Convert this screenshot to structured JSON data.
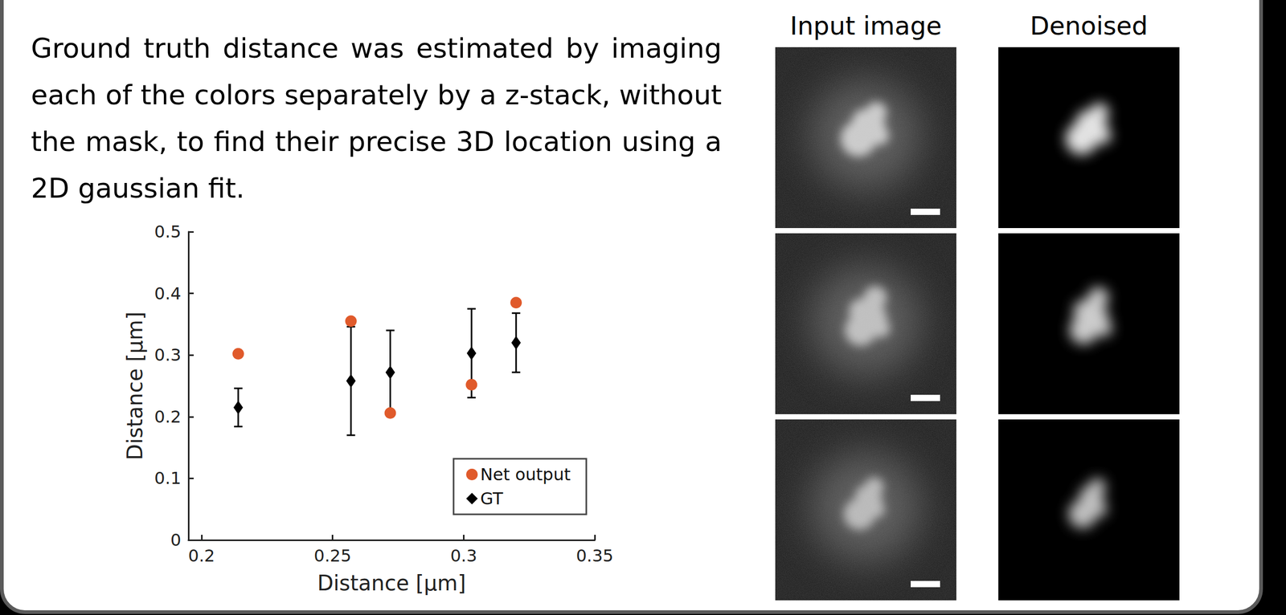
{
  "headings": {
    "columns": [
      "Input image",
      "Denoised"
    ]
  },
  "paragraph": "Ground truth distance was estimated by imaging each of the colors separately by a z-stack, without the mask, to find their precise 3D location using a 2D gaussian fit.",
  "chart_data": {
    "type": "scatter",
    "x_label": "Distance [μm]",
    "y_label": "Distance [μm]",
    "xlim": [
      0.195,
      0.35
    ],
    "xticks": [
      0.2,
      0.25,
      0.3,
      0.35
    ],
    "ylim": [
      0,
      0.5
    ],
    "yticks": [
      0,
      0.1,
      0.2,
      0.3,
      0.4,
      0.5
    ],
    "legend": "lower right",
    "grid": false,
    "series": [
      {
        "name": "Net output",
        "color": "#e05a2b",
        "marker": "circle",
        "x": [
          0.214,
          0.257,
          0.272,
          0.303,
          0.32
        ],
        "values": [
          0.302,
          0.355,
          0.206,
          0.252,
          0.385
        ]
      },
      {
        "name": "GT",
        "color": "#000000",
        "marker": "diamond",
        "x": [
          0.214,
          0.257,
          0.272,
          0.303,
          0.32
        ],
        "values": [
          0.215,
          0.258,
          0.272,
          0.303,
          0.32
        ],
        "errors": [
          0.031,
          0.088,
          0.068,
          0.072,
          0.048
        ]
      }
    ]
  }
}
